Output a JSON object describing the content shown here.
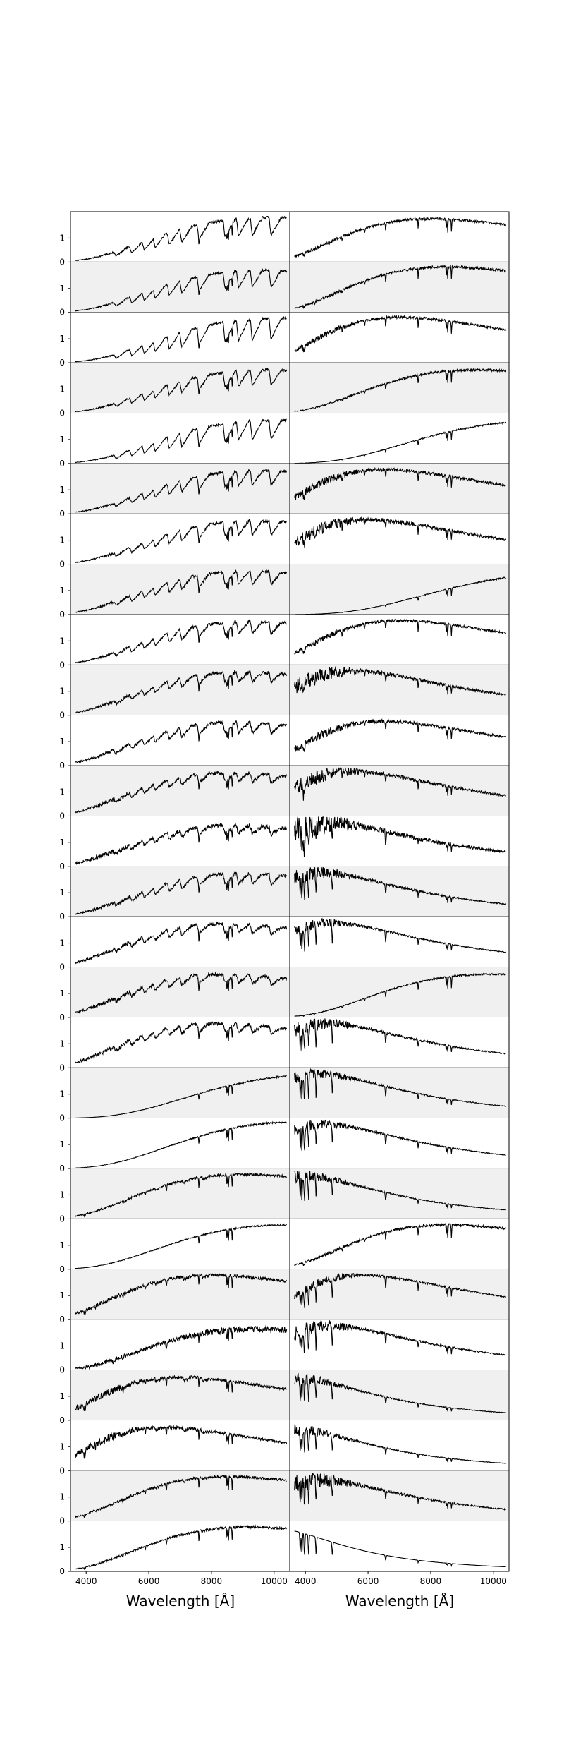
{
  "figure": {
    "colors": {
      "line": "#000000",
      "panel_bg_odd": "#f0f0f0",
      "panel_bg_even": "#ffffff",
      "frame": "#000000"
    }
  },
  "chart_data": {
    "type": "line",
    "layout": "grid of spectra panels, 27 rows x 2 columns, shared axes",
    "xlabel": "Wavelength [Å]",
    "xlim": [
      3500,
      10500
    ],
    "ylim": [
      0,
      2.1
    ],
    "xticks": [
      4000,
      6000,
      8000,
      10000
    ],
    "xtick_labels": [
      "4000",
      "6000",
      "8000",
      "10000"
    ],
    "yticks": [
      0,
      1
    ],
    "ytick_labels": [
      "0",
      "1"
    ],
    "rows": 27,
    "grid": false,
    "panel_background": "alternating white / light grey by row",
    "panels": {
      "left": [
        {
          "shape": "M",
          "peak": 9800,
          "level": 1.85,
          "bands": 1.0,
          "noise": 0.035
        },
        {
          "shape": "M",
          "peak": 9700,
          "level": 1.75,
          "bands": 1.0,
          "noise": 0.03
        },
        {
          "shape": "M",
          "peak": 10200,
          "level": 1.85,
          "bands": 1.2,
          "noise": 0.03
        },
        {
          "shape": "M",
          "peak": 9800,
          "level": 1.8,
          "bands": 0.9,
          "noise": 0.03
        },
        {
          "shape": "M",
          "peak": 10100,
          "level": 1.8,
          "bands": 1.1,
          "noise": 0.03
        },
        {
          "shape": "M",
          "peak": 9600,
          "level": 1.8,
          "bands": 0.85,
          "noise": 0.035
        },
        {
          "shape": "M",
          "peak": 9500,
          "level": 1.8,
          "bands": 0.8,
          "noise": 0.035
        },
        {
          "shape": "M",
          "peak": 9200,
          "level": 1.8,
          "bands": 0.75,
          "noise": 0.035
        },
        {
          "shape": "M",
          "peak": 9300,
          "level": 1.8,
          "bands": 0.7,
          "noise": 0.04
        },
        {
          "shape": "M",
          "peak": 9000,
          "level": 1.8,
          "bands": 0.55,
          "noise": 0.04
        },
        {
          "shape": "M",
          "peak": 8800,
          "level": 1.8,
          "bands": 0.6,
          "noise": 0.04
        },
        {
          "shape": "M",
          "peak": 8600,
          "level": 1.8,
          "bands": 0.5,
          "noise": 0.04
        },
        {
          "shape": "M",
          "peak": 8700,
          "level": 1.7,
          "bands": 0.5,
          "noise": 0.06
        },
        {
          "shape": "M",
          "peak": 9000,
          "level": 1.8,
          "bands": 0.6,
          "noise": 0.04
        },
        {
          "shape": "M",
          "peak": 8400,
          "level": 1.8,
          "bands": 0.5,
          "noise": 0.04
        },
        {
          "shape": "M",
          "peak": 8300,
          "level": 1.8,
          "bands": 0.5,
          "noise": 0.04
        },
        {
          "shape": "M",
          "peak": 8200,
          "level": 1.85,
          "bands": 0.45,
          "noise": 0.04
        },
        {
          "shape": "R",
          "peak": 12000,
          "level": 1.85,
          "bands": 0.1,
          "noise": 0.02
        },
        {
          "shape": "R",
          "peak": 11000,
          "level": 1.95,
          "bands": 0,
          "noise": 0.02
        },
        {
          "shape": "K",
          "peak": 9000,
          "level": 1.85,
          "bands": 0.15,
          "noise": 0.03
        },
        {
          "shape": "R",
          "peak": 10500,
          "level": 1.85,
          "bands": 0,
          "noise": 0.02
        },
        {
          "shape": "K",
          "peak": 8000,
          "level": 1.85,
          "bands": 0.15,
          "noise": 0.035
        },
        {
          "shape": "B",
          "peak": 9500,
          "level": 1.7,
          "bands": 0.4,
          "noise": 0.08
        },
        {
          "shape": "K",
          "peak": 7000,
          "level": 1.8,
          "bands": 0.2,
          "noise": 0.04
        },
        {
          "shape": "K",
          "peak": 6500,
          "level": 1.8,
          "bands": 0.15,
          "noise": 0.04
        },
        {
          "shape": "K",
          "peak": 8500,
          "level": 1.85,
          "bands": 0.1,
          "noise": 0.03
        },
        {
          "shape": "K",
          "peak": 9200,
          "level": 1.85,
          "bands": 0.05,
          "noise": 0.03
        }
      ],
      "right": [
        {
          "shape": "G",
          "peak": 8000,
          "level": 1.8,
          "noise": 0.03
        },
        {
          "shape": "G",
          "peak": 8500,
          "level": 1.9,
          "noise": 0.03
        },
        {
          "shape": "G",
          "peak": 7000,
          "level": 1.9,
          "noise": 0.03
        },
        {
          "shape": "G",
          "peak": 9500,
          "level": 1.8,
          "noise": 0.03
        },
        {
          "shape": "G",
          "peak": 12000,
          "level": 1.8,
          "noise": 0.02
        },
        {
          "shape": "G",
          "peak": 6500,
          "level": 1.85,
          "noise": 0.04
        },
        {
          "shape": "G",
          "peak": 6000,
          "level": 1.85,
          "noise": 0.05
        },
        {
          "shape": "G",
          "peak": 13000,
          "level": 1.75,
          "noise": 0.02
        },
        {
          "shape": "G",
          "peak": 7000,
          "level": 1.85,
          "noise": 0.03
        },
        {
          "shape": "G",
          "peak": 5500,
          "level": 1.85,
          "noise": 0.05
        },
        {
          "shape": "G",
          "peak": 6500,
          "level": 1.85,
          "noise": 0.04
        },
        {
          "shape": "G",
          "peak": 5500,
          "level": 1.85,
          "noise": 0.05
        },
        {
          "shape": "F",
          "peak": 4800,
          "level": 1.8,
          "noise": 0.08
        },
        {
          "shape": "A",
          "peak": 4500,
          "level": 1.85,
          "noise": 0.04
        },
        {
          "shape": "A",
          "peak": 4800,
          "level": 1.85,
          "noise": 0.03
        },
        {
          "shape": "G",
          "peak": 10000,
          "level": 1.8,
          "noise": 0.02
        },
        {
          "shape": "A",
          "peak": 4700,
          "level": 1.85,
          "noise": 0.04
        },
        {
          "shape": "A",
          "peak": 4400,
          "level": 1.85,
          "noise": 0.03
        },
        {
          "shape": "A",
          "peak": 4600,
          "level": 1.85,
          "noise": 0.03
        },
        {
          "shape": "A",
          "peak": 4000,
          "level": 1.8,
          "noise": 0.03
        },
        {
          "shape": "G",
          "peak": 8500,
          "level": 1.85,
          "noise": 0.03
        },
        {
          "shape": "A",
          "peak": 5800,
          "level": 1.85,
          "noise": 0.03
        },
        {
          "shape": "A",
          "peak": 4800,
          "level": 1.85,
          "noise": 0.04
        },
        {
          "shape": "A",
          "peak": 3800,
          "level": 1.75,
          "noise": 0.03
        },
        {
          "shape": "A",
          "peak": 3800,
          "level": 1.7,
          "noise": 0.03
        },
        {
          "shape": "A",
          "peak": 4500,
          "level": 1.7,
          "noise": 0.05
        },
        {
          "shape": "B",
          "peak": 3200,
          "level": 1.75,
          "noise": 0.01
        }
      ]
    }
  }
}
